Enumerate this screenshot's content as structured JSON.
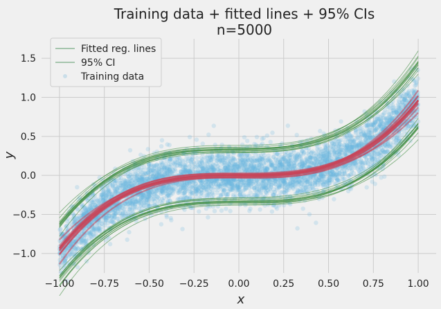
{
  "chart_data": {
    "type": "scatter",
    "title_line1": "Training data + fitted lines + 95% CIs",
    "title_line2": "n=5000",
    "xlabel": "x",
    "ylabel": "y",
    "xlim": [
      -1.1,
      1.1
    ],
    "ylim": [
      -1.25,
      1.75
    ],
    "xticks": [
      -1.0,
      -0.75,
      -0.5,
      -0.25,
      0.0,
      0.25,
      0.5,
      0.75,
      1.0
    ],
    "xtick_labels": [
      "−1.00",
      "−0.75",
      "−0.50",
      "−0.25",
      "0.00",
      "0.25",
      "0.50",
      "0.75",
      "1.00"
    ],
    "yticks": [
      -1.0,
      -0.5,
      0.0,
      0.5,
      1.0,
      1.5
    ],
    "ytick_labels": [
      "−1.0",
      "−0.5",
      "0.0",
      "0.5",
      "1.0",
      "1.5"
    ],
    "grid": true,
    "legend_position": "top-left",
    "legend": [
      "Fitted reg. lines",
      "95% CI",
      "Training data"
    ],
    "n_points": 5000,
    "x_range": [
      -1.0,
      1.0
    ],
    "true_function": "y = x^3",
    "noise_sd_approx": 0.17,
    "ci_halfwidth_approx": 0.33,
    "series": [
      {
        "name": "Fitted reg. lines",
        "color": "#c94457",
        "x": [
          -1.0,
          -0.75,
          -0.5,
          -0.25,
          0.0,
          0.25,
          0.5,
          0.75,
          1.0
        ],
        "y": [
          -0.95,
          -0.42,
          -0.12,
          -0.02,
          0.0,
          0.02,
          0.12,
          0.42,
          0.93
        ]
      },
      {
        "name": "95% CI upper",
        "color": "#3d8a3d",
        "x": [
          -1.0,
          -0.75,
          -0.5,
          -0.25,
          0.0,
          0.25,
          0.5,
          0.75,
          1.0
        ],
        "y": [
          -0.65,
          -0.1,
          0.2,
          0.29,
          0.33,
          0.38,
          0.47,
          0.78,
          1.45
        ]
      },
      {
        "name": "95% CI lower",
        "color": "#3d8a3d",
        "x": [
          -1.0,
          -0.75,
          -0.5,
          -0.25,
          0.0,
          0.25,
          0.5,
          0.75,
          1.0
        ],
        "y": [
          -1.05,
          -0.75,
          -0.46,
          -0.33,
          -0.33,
          -0.3,
          -0.22,
          0.08,
          0.42
        ]
      },
      {
        "name": "Training data",
        "color": "#6ab4de"
      }
    ]
  }
}
